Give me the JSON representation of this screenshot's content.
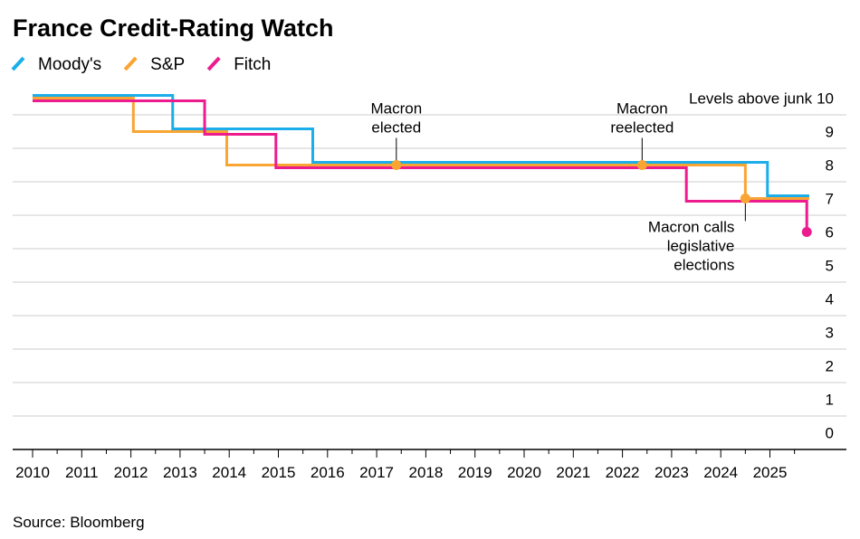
{
  "chart_data": {
    "type": "line",
    "title": "France Credit-Rating Watch",
    "ylabel": "Levels above junk",
    "source": "Source: Bloomberg",
    "ylim": [
      0,
      10
    ],
    "xlim": [
      2010,
      2026
    ],
    "y_ticks": [
      "0",
      "1",
      "2",
      "3",
      "4",
      "5",
      "6",
      "7",
      "8",
      "9",
      "10"
    ],
    "x_ticks": [
      "2010",
      "2011",
      "2012",
      "2013",
      "2014",
      "2015",
      "2016",
      "2017",
      "2018",
      "2019",
      "2020",
      "2021",
      "2022",
      "2023",
      "2024",
      "2025"
    ],
    "legend_position": "top-left",
    "grid": true,
    "series": [
      {
        "name": "Moody's",
        "color": "#1BAEEA",
        "step_points": [
          [
            2010.0,
            10
          ],
          [
            2012.85,
            10
          ],
          [
            2012.85,
            9
          ],
          [
            2015.7,
            9
          ],
          [
            2015.7,
            8
          ],
          [
            2024.95,
            8
          ],
          [
            2024.95,
            7
          ],
          [
            2025.8,
            7
          ]
        ]
      },
      {
        "name": "S&P",
        "color": "#F9A533",
        "step_points": [
          [
            2010.0,
            10
          ],
          [
            2012.05,
            10
          ],
          [
            2012.05,
            9
          ],
          [
            2013.95,
            9
          ],
          [
            2013.95,
            8
          ],
          [
            2024.5,
            8
          ],
          [
            2024.5,
            7
          ],
          [
            2025.8,
            7
          ]
        ]
      },
      {
        "name": "Fitch",
        "color": "#EC1C8E",
        "step_points": [
          [
            2010.0,
            10
          ],
          [
            2013.5,
            10
          ],
          [
            2013.5,
            9
          ],
          [
            2014.95,
            9
          ],
          [
            2014.95,
            8
          ],
          [
            2023.3,
            8
          ],
          [
            2023.3,
            7
          ],
          [
            2025.75,
            7
          ],
          [
            2025.75,
            6
          ]
        ]
      }
    ],
    "annotations": [
      {
        "label": [
          "Macron",
          "elected"
        ],
        "x": 2017.4,
        "y": 8,
        "color": "#F9A533",
        "text_position": "above",
        "align": "middle"
      },
      {
        "label": [
          "Macron",
          "reelected"
        ],
        "x": 2022.4,
        "y": 8,
        "color": "#F9A533",
        "text_position": "above",
        "align": "middle"
      },
      {
        "label": [
          "Macron calls",
          "legislative",
          "elections"
        ],
        "x": 2024.5,
        "y": 7,
        "color": "#F9A533",
        "text_position": "below",
        "align": "end"
      },
      {
        "label": [],
        "x": 2025.75,
        "y": 6,
        "color": "#EC1C8E",
        "text_position": "none",
        "align": "middle"
      }
    ]
  }
}
